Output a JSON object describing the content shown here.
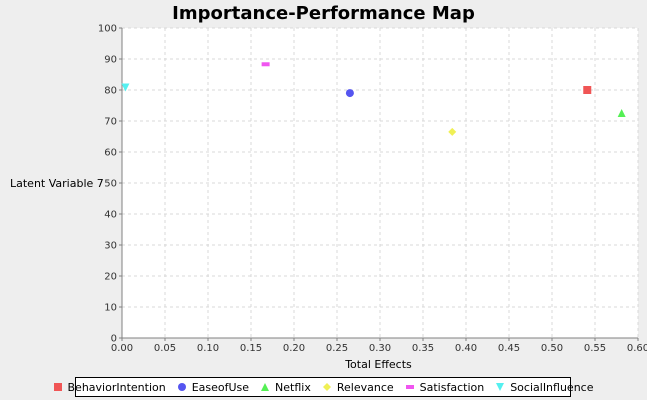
{
  "chart_data": {
    "type": "scatter",
    "title": "Importance-Performance Map",
    "xlabel": "Total Effects",
    "ylabel": "Latent Variable 7",
    "xlim": [
      0,
      0.6
    ],
    "ylim": [
      0,
      100
    ],
    "xticks": [
      "0.00",
      "0.05",
      "0.10",
      "0.15",
      "0.20",
      "0.25",
      "0.30",
      "0.35",
      "0.40",
      "0.45",
      "0.50",
      "0.55",
      "0.60"
    ],
    "yticks": [
      "0",
      "10",
      "20",
      "30",
      "40",
      "50",
      "60",
      "70",
      "80",
      "90",
      "100"
    ],
    "grid": true,
    "legend_position": "bottom",
    "series": [
      {
        "name": "BehaviorIntention",
        "marker": "square",
        "color": "#f05555",
        "x": [
          0.541
        ],
        "y": [
          80.0
        ]
      },
      {
        "name": "EaseofUse",
        "marker": "circle",
        "color": "#5555f0",
        "x": [
          0.265
        ],
        "y": [
          79.0
        ]
      },
      {
        "name": "Netflix",
        "marker": "triangle-up",
        "color": "#55f055",
        "x": [
          0.581
        ],
        "y": [
          72.6
        ]
      },
      {
        "name": "Relevance",
        "marker": "diamond",
        "color": "#f0f055",
        "x": [
          0.384
        ],
        "y": [
          66.5
        ]
      },
      {
        "name": "Satisfaction",
        "marker": "rect-h",
        "color": "#f055f0",
        "x": [
          0.167
        ],
        "y": [
          88.3
        ]
      },
      {
        "name": "SocialInfluence",
        "marker": "triangle-down",
        "color": "#55f0f0",
        "x": [
          0.004
        ],
        "y": [
          80.8
        ]
      }
    ]
  }
}
